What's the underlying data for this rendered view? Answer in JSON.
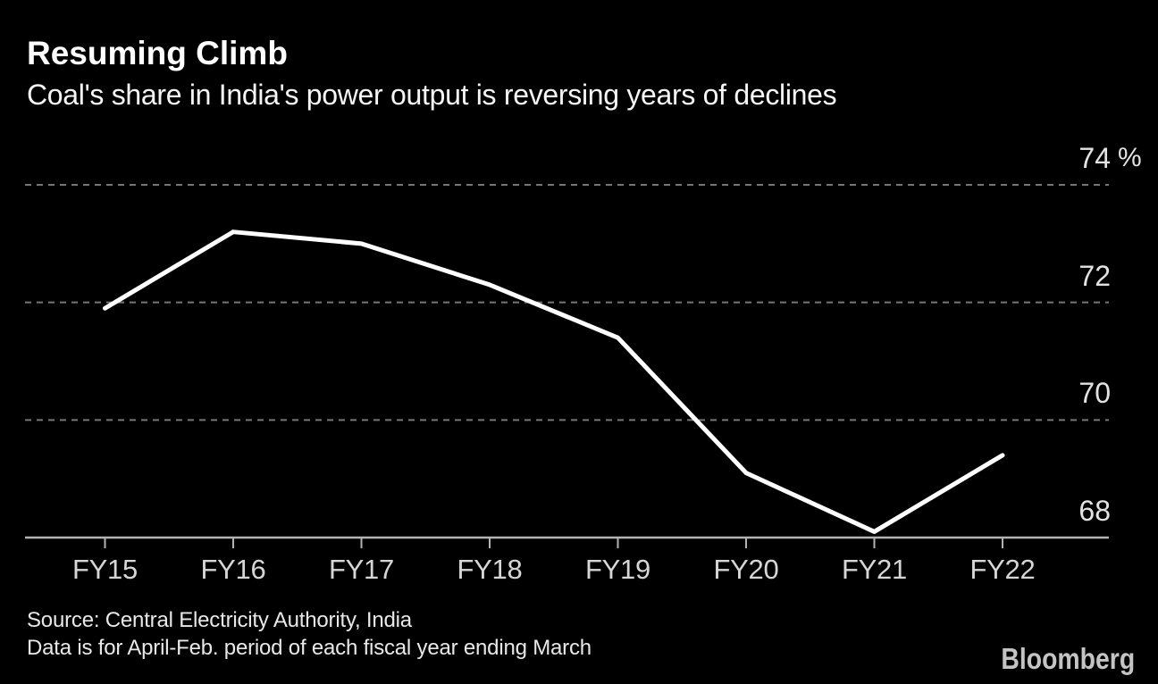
{
  "header": {
    "title": "Resuming Climb",
    "subtitle": "Coal's share in India's power output is reversing years of declines"
  },
  "chart_data": {
    "type": "line",
    "title": "Resuming Climb",
    "subtitle": "Coal's share in India's power output is reversing years of declines",
    "categories": [
      "FY15",
      "FY16",
      "FY17",
      "FY18",
      "FY19",
      "FY20",
      "FY21",
      "FY22"
    ],
    "values": [
      71.9,
      73.2,
      73.0,
      72.3,
      71.4,
      69.1,
      68.1,
      69.4
    ],
    "unit": "%",
    "yticks": [
      74,
      72,
      70,
      68
    ],
    "ylim": [
      68,
      74.6
    ],
    "grid": "horizontal-dashed",
    "legend": "none",
    "line_color": "#ffffff",
    "background_color": "#000000",
    "xlabel": "",
    "ylabel": "%"
  },
  "footer": {
    "source_line1": "Source: Central Electricity Authority, India",
    "source_line2": "Data is for April-Feb. period of each fiscal year ending March",
    "brand": "Bloomberg"
  }
}
